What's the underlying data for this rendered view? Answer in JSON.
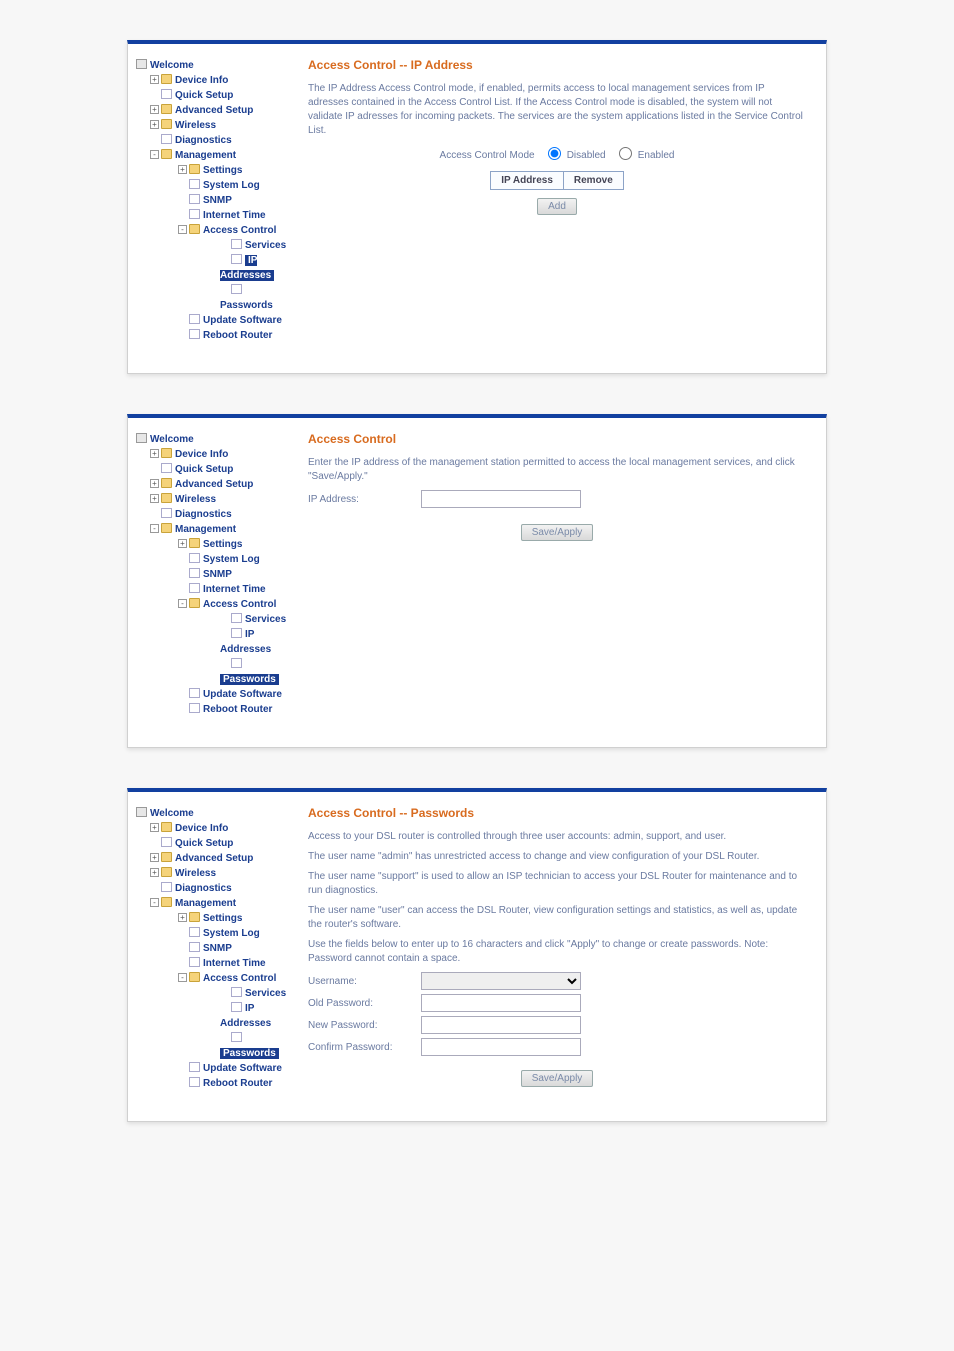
{
  "nav": {
    "root": "Welcome",
    "items": [
      {
        "label": "Device Info",
        "type": "folder",
        "exp": "+"
      },
      {
        "label": "Quick Setup",
        "type": "doc"
      },
      {
        "label": "Advanced Setup",
        "type": "folder",
        "exp": "+"
      },
      {
        "label": "Wireless",
        "type": "folder",
        "exp": "+"
      },
      {
        "label": "Diagnostics",
        "type": "doc"
      },
      {
        "label": "Management",
        "type": "folder-open",
        "exp": "-",
        "children": [
          {
            "label": "Settings",
            "type": "folder",
            "exp": "+"
          },
          {
            "label": "System Log",
            "type": "doc"
          },
          {
            "label": "SNMP",
            "type": "doc"
          },
          {
            "label": "Internet Time",
            "type": "doc"
          },
          {
            "label": "Access Control",
            "type": "folder-open",
            "exp": "-",
            "children": [
              {
                "label": "Services",
                "type": "doc"
              },
              {
                "label": "IP Addresses",
                "type": "doc"
              },
              {
                "label": "Passwords",
                "type": "doc"
              }
            ]
          },
          {
            "label": "Update Software",
            "type": "doc"
          },
          {
            "label": "Reboot Router",
            "type": "doc"
          }
        ]
      }
    ]
  },
  "panel1": {
    "title": "Access Control -- IP Address",
    "desc": "The IP Address Access Control mode, if enabled, permits access to local management services from IP adresses contained in the Access Control List. If the Access Control mode is disabled, the system will not validate IP adresses for incoming packets. The services are the system applications listed in the Service Control List.",
    "modeLabel": "Access Control Mode",
    "disabled": "Disabled",
    "enabled": "Enabled",
    "col1": "IP Address",
    "col2": "Remove",
    "addBtn": "Add",
    "active": "IP Addresses"
  },
  "panel2": {
    "title": "Access Control",
    "desc": "Enter the IP address of the management station permitted to access the local management services, and click \"Save/Apply.\"",
    "ipLabel": "IP Address:",
    "btn": "Save/Apply",
    "active": "Passwords"
  },
  "panel3": {
    "title": "Access Control -- Passwords",
    "p1": "Access to your DSL router is controlled through three user accounts: admin, support, and user.",
    "p2": "The user name \"admin\" has unrestricted access to change and view configuration of your DSL Router.",
    "p3": "The user name \"support\" is used to allow an ISP technician to access your DSL Router for maintenance and to run diagnostics.",
    "p4": "The user name \"user\" can access the DSL Router, view configuration settings and statistics, as well as, update the router's software.",
    "p5": "Use the fields below to enter up to 16 characters and click \"Apply\" to change or create passwords. Note: Password cannot contain a space.",
    "f1": "Username:",
    "f2": "Old Password:",
    "f3": "New Password:",
    "f4": "Confirm Password:",
    "btn": "Save/Apply",
    "active": "Passwords"
  }
}
